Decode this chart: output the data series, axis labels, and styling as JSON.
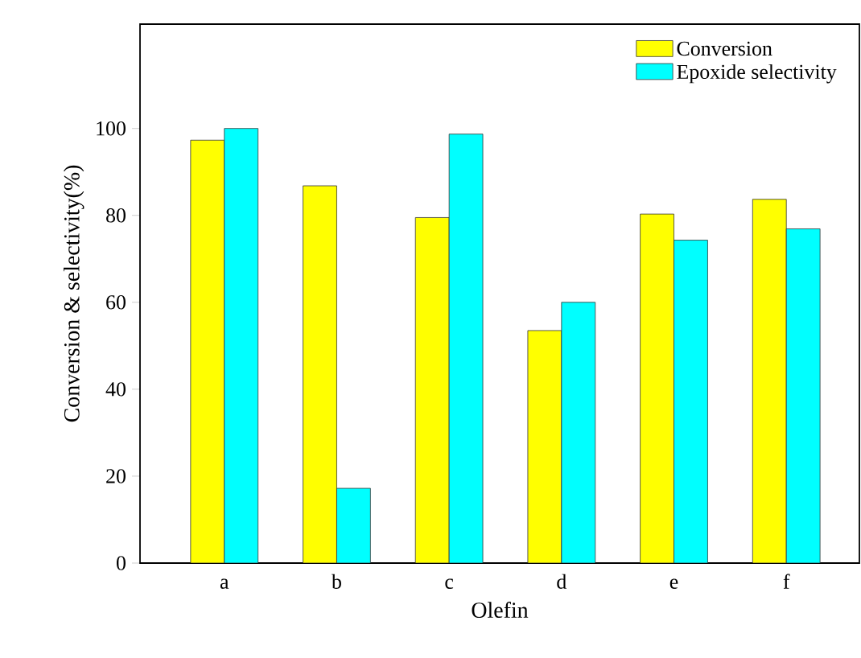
{
  "chart_data": {
    "type": "bar",
    "xlabel": "Olefin",
    "ylabel": "Conversion & selectivity(%)",
    "categories": [
      "a",
      "b",
      "c",
      "d",
      "e",
      "f"
    ],
    "series": [
      {
        "name": "Conversion",
        "color": "#ffff00",
        "values": [
          97.3,
          86.8,
          79.5,
          53.5,
          80.3,
          83.7
        ]
      },
      {
        "name": "Epoxide selectivity",
        "color": "#00ffff",
        "values": [
          100,
          17.2,
          98.7,
          60.0,
          74.3,
          76.9
        ]
      }
    ],
    "ylim": [
      0,
      124
    ],
    "yticks": [
      0,
      20,
      40,
      60,
      80,
      100
    ],
    "legend": "top right"
  }
}
